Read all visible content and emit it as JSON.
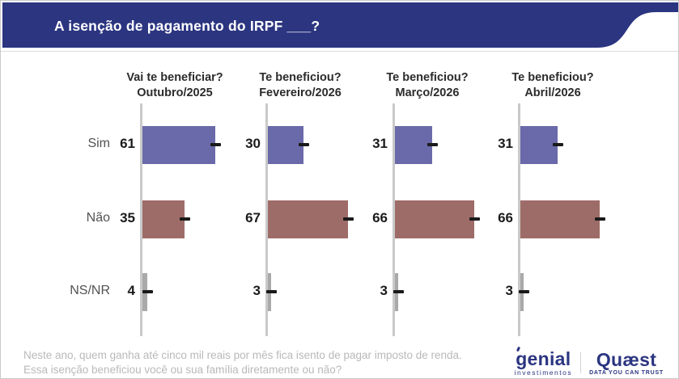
{
  "title": "A isenção de pagamento do IRPF ___?",
  "chart_data": {
    "type": "bar",
    "orientation": "horizontal",
    "categories": [
      "Sim",
      "Não",
      "NS/NR"
    ],
    "series": [
      {
        "question": "Vai te beneficiar?",
        "period": "Outubro/2025",
        "values": [
          61,
          35,
          4
        ]
      },
      {
        "question": "Te beneficiou?",
        "period": "Fevereiro/2026",
        "values": [
          30,
          67,
          3
        ]
      },
      {
        "question": "Te beneficiou?",
        "period": "Março/2026",
        "values": [
          31,
          66,
          3
        ]
      },
      {
        "question": "Te beneficiou?",
        "period": "Abril/2026",
        "values": [
          31,
          66,
          3
        ]
      }
    ],
    "value_range": [
      0,
      100
    ],
    "bar_colors": [
      "#6A69A9",
      "#9E6C68",
      "#A9A9A9"
    ],
    "axis_color": "#C9C9C9",
    "shows_error_ticks": true,
    "legend_position": "none",
    "grid": false
  },
  "footnote": {
    "line1": "Neste ano, quem ganha até cinco mil reais por mês fica isento de pagar imposto de renda.",
    "line2": "Essa isenção beneficiou você ou sua família diretamente ou não?"
  },
  "branding": {
    "genial": {
      "name": "genial",
      "tagline": "investimentos"
    },
    "quaest": {
      "name": "Quæst",
      "tagline": "DATA YOU CAN TRUST"
    }
  },
  "colors": {
    "header_bg": "#2B3580",
    "brand_navy": "#2B3580"
  }
}
